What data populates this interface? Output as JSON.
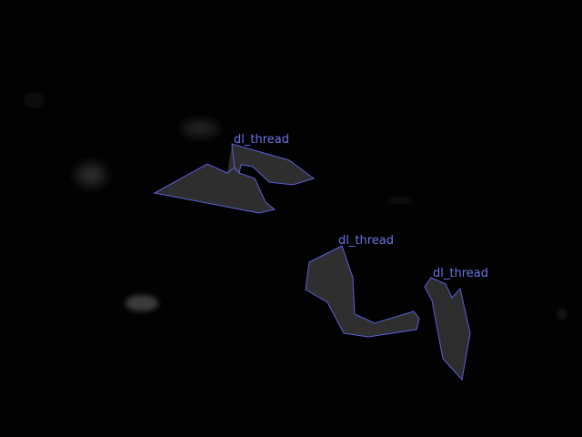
{
  "annotations": [
    {
      "label": "dl_thread",
      "color": "#5a5fd8"
    },
    {
      "label": "dl_thread",
      "color": "#5a5fd8"
    },
    {
      "label": "dl_thread",
      "color": "#5a5fd8"
    }
  ]
}
